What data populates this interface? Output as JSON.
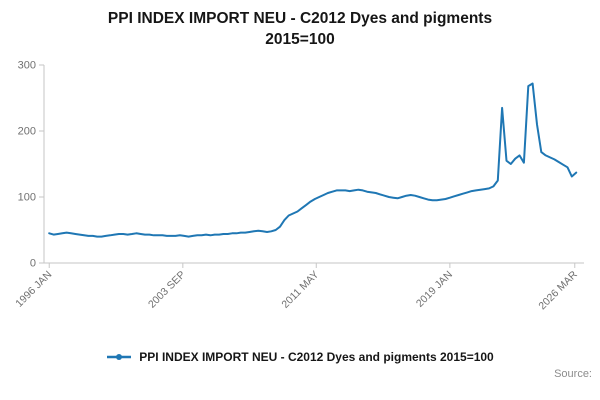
{
  "title_line1": "PPI INDEX IMPORT NEU - C2012 Dyes and pigments",
  "title_line2": "2015=100",
  "legend": {
    "label": "PPI INDEX IMPORT NEU - C2012 Dyes and pigments 2015=100"
  },
  "source_label": "Source:",
  "colors": {
    "line": "#1f77b4",
    "axis": "#c6c6c6",
    "tick_text": "#707070"
  },
  "chart_data": {
    "type": "line",
    "title": "PPI INDEX IMPORT NEU - C2012 Dyes and pigments 2015=100",
    "xlabel": "",
    "ylabel": "",
    "ylim": [
      0,
      300
    ],
    "xlim": [
      1995.7,
      2026.7
    ],
    "x_start": 1996.0,
    "x_step": 0.25,
    "y_ticks": [
      0,
      100,
      200,
      300
    ],
    "x_ticks": [
      {
        "x": 1996.0,
        "label": "1996 JAN"
      },
      {
        "x": 2003.67,
        "label": "2003 SEP"
      },
      {
        "x": 2011.33,
        "label": "2011 MAY"
      },
      {
        "x": 2019.0,
        "label": "2019 JAN"
      },
      {
        "x": 2026.17,
        "label": "2026 MAR"
      }
    ],
    "series": [
      {
        "name": "PPI INDEX IMPORT NEU - C2012 Dyes and pigments 2015=100",
        "values": [
          45,
          43,
          44,
          45,
          46,
          45,
          44,
          43,
          42,
          41,
          41,
          40,
          40,
          41,
          42,
          43,
          44,
          44,
          43,
          44,
          45,
          44,
          43,
          43,
          42,
          42,
          42,
          41,
          41,
          41,
          42,
          41,
          40,
          41,
          42,
          42,
          43,
          42,
          43,
          43,
          44,
          44,
          45,
          45,
          46,
          46,
          47,
          48,
          49,
          48,
          47,
          48,
          50,
          55,
          65,
          72,
          75,
          78,
          83,
          88,
          93,
          97,
          100,
          103,
          106,
          108,
          110,
          110,
          110,
          109,
          110,
          111,
          110,
          108,
          107,
          106,
          104,
          102,
          100,
          99,
          98,
          100,
          102,
          103,
          102,
          100,
          98,
          96,
          95,
          95,
          96,
          97,
          99,
          101,
          103,
          105,
          107,
          109,
          110,
          111,
          112,
          113,
          116,
          125,
          235,
          155,
          150,
          158,
          163,
          152,
          268,
          272,
          210,
          168,
          163,
          160,
          157,
          153,
          149,
          145,
          131,
          137
        ]
      }
    ],
    "grid": false,
    "legend_position": "bottom"
  }
}
